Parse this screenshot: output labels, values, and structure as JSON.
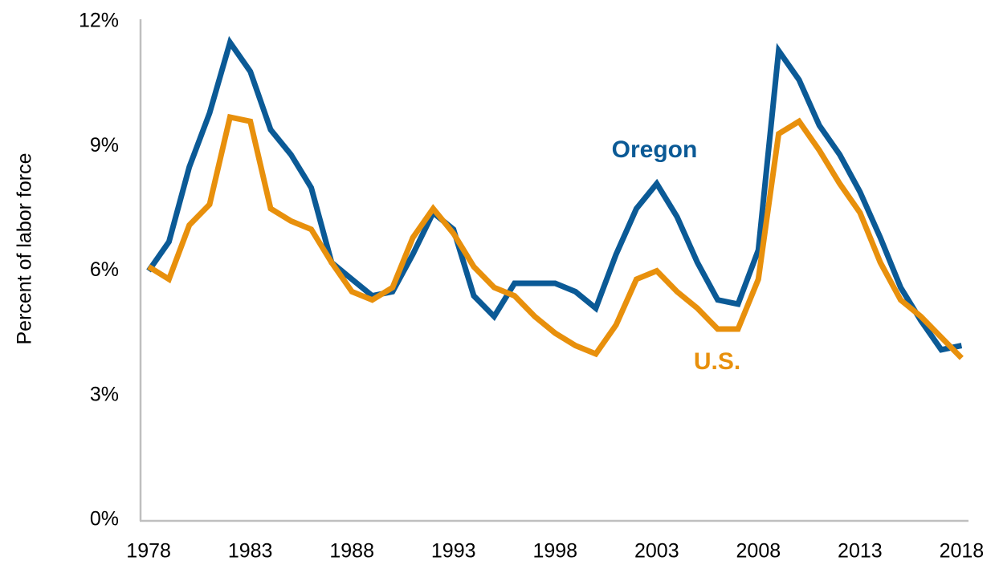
{
  "chart_data": {
    "type": "line",
    "y_label": "Percent of labor force",
    "x": [
      1978,
      1979,
      1980,
      1981,
      1982,
      1983,
      1984,
      1985,
      1986,
      1987,
      1988,
      1989,
      1990,
      1991,
      1992,
      1993,
      1994,
      1995,
      1996,
      1997,
      1998,
      1999,
      2000,
      2001,
      2002,
      2003,
      2004,
      2005,
      2006,
      2007,
      2008,
      2009,
      2010,
      2011,
      2012,
      2013,
      2014,
      2015,
      2016,
      2017,
      2018
    ],
    "series": [
      {
        "name": "Oregon",
        "color": "#0b5a96",
        "values": [
          6.0,
          6.7,
          8.5,
          9.8,
          11.5,
          10.8,
          9.4,
          8.8,
          8.0,
          6.2,
          5.8,
          5.4,
          5.5,
          6.4,
          7.4,
          7.0,
          5.4,
          4.9,
          5.7,
          5.7,
          5.7,
          5.5,
          5.1,
          6.4,
          7.5,
          8.1,
          7.3,
          6.2,
          5.3,
          5.2,
          6.5,
          11.3,
          10.6,
          9.5,
          8.8,
          7.9,
          6.8,
          5.6,
          4.8,
          4.1,
          4.2
        ]
      },
      {
        "name": "U.S.",
        "color": "#e8900c",
        "values": [
          6.1,
          5.8,
          7.1,
          7.6,
          9.7,
          9.6,
          7.5,
          7.2,
          7.0,
          6.2,
          5.5,
          5.3,
          5.6,
          6.8,
          7.5,
          6.9,
          6.1,
          5.6,
          5.4,
          4.9,
          4.5,
          4.2,
          4.0,
          4.7,
          5.8,
          6.0,
          5.5,
          5.1,
          4.6,
          4.6,
          5.8,
          9.3,
          9.6,
          8.9,
          8.1,
          7.4,
          6.2,
          5.3,
          4.9,
          4.4,
          3.9
        ]
      }
    ],
    "xlim": [
      1977.6,
      2018.3
    ],
    "xticks": [
      1978,
      1983,
      1988,
      1993,
      1998,
      2003,
      2008,
      2013,
      2018
    ],
    "ylim": [
      0,
      12
    ],
    "yticks": [
      {
        "value": 0,
        "label": "0%"
      },
      {
        "value": 3,
        "label": "3%"
      },
      {
        "value": 6,
        "label": "6%"
      },
      {
        "value": 9,
        "label": "9%"
      },
      {
        "value": 12,
        "label": "12%"
      }
    ],
    "grid": false
  }
}
